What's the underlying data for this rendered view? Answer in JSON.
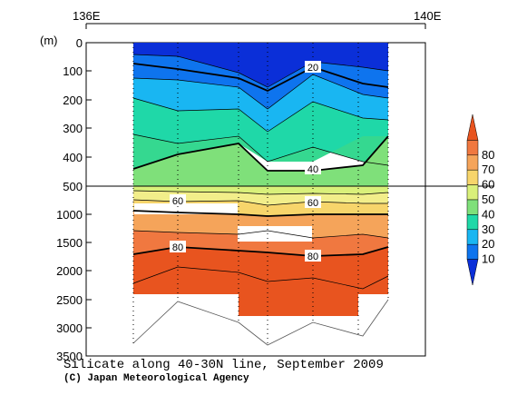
{
  "chart_data": {
    "type": "heatmap",
    "title": "Silicate along 40-30N line, September 2009",
    "credit": "(C) Japan Meteorological Agency",
    "x_ticks": [
      "136E",
      "140E"
    ],
    "y_unit_label": "(m)",
    "y_ticks": [
      "0",
      "100",
      "200",
      "300",
      "400",
      "500",
      "1000",
      "1500",
      "2000",
      "2500",
      "3000",
      "3500"
    ],
    "y_scale": "piecewise: 0-500 m stretched, 500-3500 m compressed",
    "contour_labels": [
      "20",
      "40",
      "60",
      "60",
      "80",
      "80"
    ],
    "colorbar": {
      "levels": [
        "10",
        "20",
        "30",
        "40",
        "50",
        "60",
        "70",
        "80"
      ],
      "colors": [
        "#0b2fd8",
        "#0e74ee",
        "#19b6f2",
        "#1fd8a8",
        "#7fe07a",
        "#d9f07a",
        "#f7d56b",
        "#f5a45a",
        "#f07840",
        "#e8541f"
      ]
    },
    "color_scale_note": "silicate concentration levels 10-80"
  }
}
